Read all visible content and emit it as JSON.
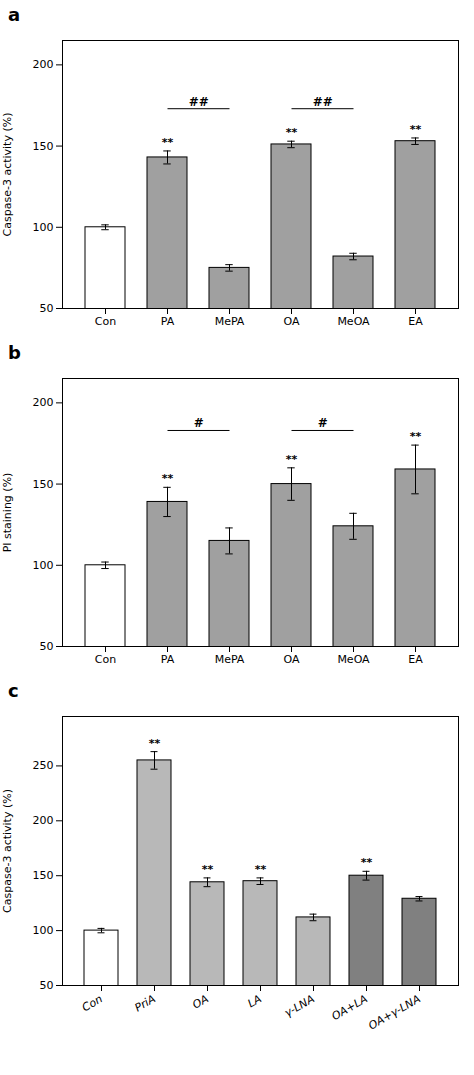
{
  "chart_data": [
    {
      "type": "bar",
      "title": "a",
      "ylabel": "Caspase-3 activity (%)",
      "categories": [
        "Con",
        "PA",
        "MePA",
        "OA",
        "MeOA",
        "EA"
      ],
      "values": [
        100,
        143,
        75,
        151,
        82,
        153
      ],
      "errors": [
        1.5,
        4,
        2,
        2,
        2,
        2
      ],
      "colors": [
        "#ffffff",
        "#a0a0a0",
        "#a0a0a0",
        "#a0a0a0",
        "#a0a0a0",
        "#a0a0a0"
      ],
      "ylim": [
        50,
        215
      ],
      "yticks": [
        50,
        100,
        150,
        200
      ],
      "annotations": [
        {
          "category": "PA",
          "text": "**"
        },
        {
          "category": "OA",
          "text": "**"
        },
        {
          "category": "EA",
          "text": "**"
        }
      ],
      "brackets": [
        {
          "x1": "PA",
          "x2": "MePA",
          "y": 173,
          "label": "##"
        },
        {
          "x1": "OA",
          "x2": "MeOA",
          "y": 173,
          "label": "##"
        }
      ]
    },
    {
      "type": "bar",
      "title": "b",
      "ylabel": "PI staining (%)",
      "categories": [
        "Con",
        "PA",
        "MePA",
        "OA",
        "MeOA",
        "EA"
      ],
      "values": [
        100,
        139,
        115,
        150,
        124,
        159
      ],
      "errors": [
        2,
        9,
        8,
        10,
        8,
        15
      ],
      "colors": [
        "#ffffff",
        "#a0a0a0",
        "#a0a0a0",
        "#a0a0a0",
        "#a0a0a0",
        "#a0a0a0"
      ],
      "ylim": [
        50,
        215
      ],
      "yticks": [
        50,
        100,
        150,
        200
      ],
      "annotations": [
        {
          "category": "PA",
          "text": "**"
        },
        {
          "category": "OA",
          "text": "**"
        },
        {
          "category": "EA",
          "text": "**"
        }
      ],
      "brackets": [
        {
          "x1": "PA",
          "x2": "MePA",
          "y": 183,
          "label": "#"
        },
        {
          "x1": "OA",
          "x2": "MeOA",
          "y": 183,
          "label": "#"
        }
      ]
    },
    {
      "type": "bar",
      "title": "c",
      "ylabel": "Caspase-3 activity (%)",
      "categories": [
        "Con",
        "PriA",
        "OA",
        "LA",
        "γ-LNA",
        "OA+LA",
        "OA+γ-LNA"
      ],
      "values": [
        100,
        255,
        144,
        145,
        112,
        150,
        129
      ],
      "errors": [
        2,
        8,
        4,
        3,
        3,
        4,
        2
      ],
      "colors": [
        "#ffffff",
        "#b8b8b8",
        "#b8b8b8",
        "#b8b8b8",
        "#b8b8b8",
        "#808080",
        "#808080"
      ],
      "ylim": [
        50,
        295
      ],
      "yticks": [
        50,
        100,
        150,
        200,
        250
      ],
      "annotations": [
        {
          "category": "PriA",
          "text": "**"
        },
        {
          "category": "OA",
          "text": "**"
        },
        {
          "category": "LA",
          "text": "**"
        },
        {
          "category": "OA+LA",
          "text": "**"
        }
      ]
    }
  ]
}
